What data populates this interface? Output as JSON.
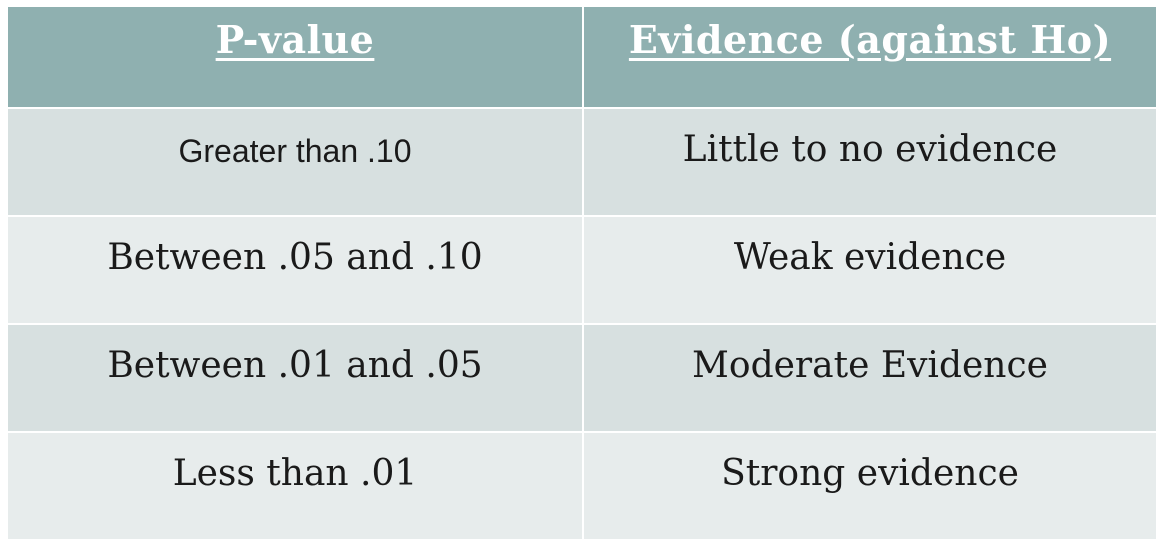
{
  "table": {
    "headers": [
      "P-value",
      "Evidence (against Ho)"
    ],
    "rows": [
      [
        "Greater than .10",
        "Little to no evidence"
      ],
      [
        "Between .05 and .10",
        "Weak evidence"
      ],
      [
        "Between .01 and .05",
        "Moderate Evidence"
      ],
      [
        "Less than .01",
        "Strong evidence"
      ]
    ]
  },
  "colors": {
    "header_bg": "#8fb0b0",
    "row_bg": "#d7e0e0",
    "row_alt_bg": "#e7ecec",
    "header_text": "#ffffff",
    "body_text": "#1a1a1a"
  }
}
